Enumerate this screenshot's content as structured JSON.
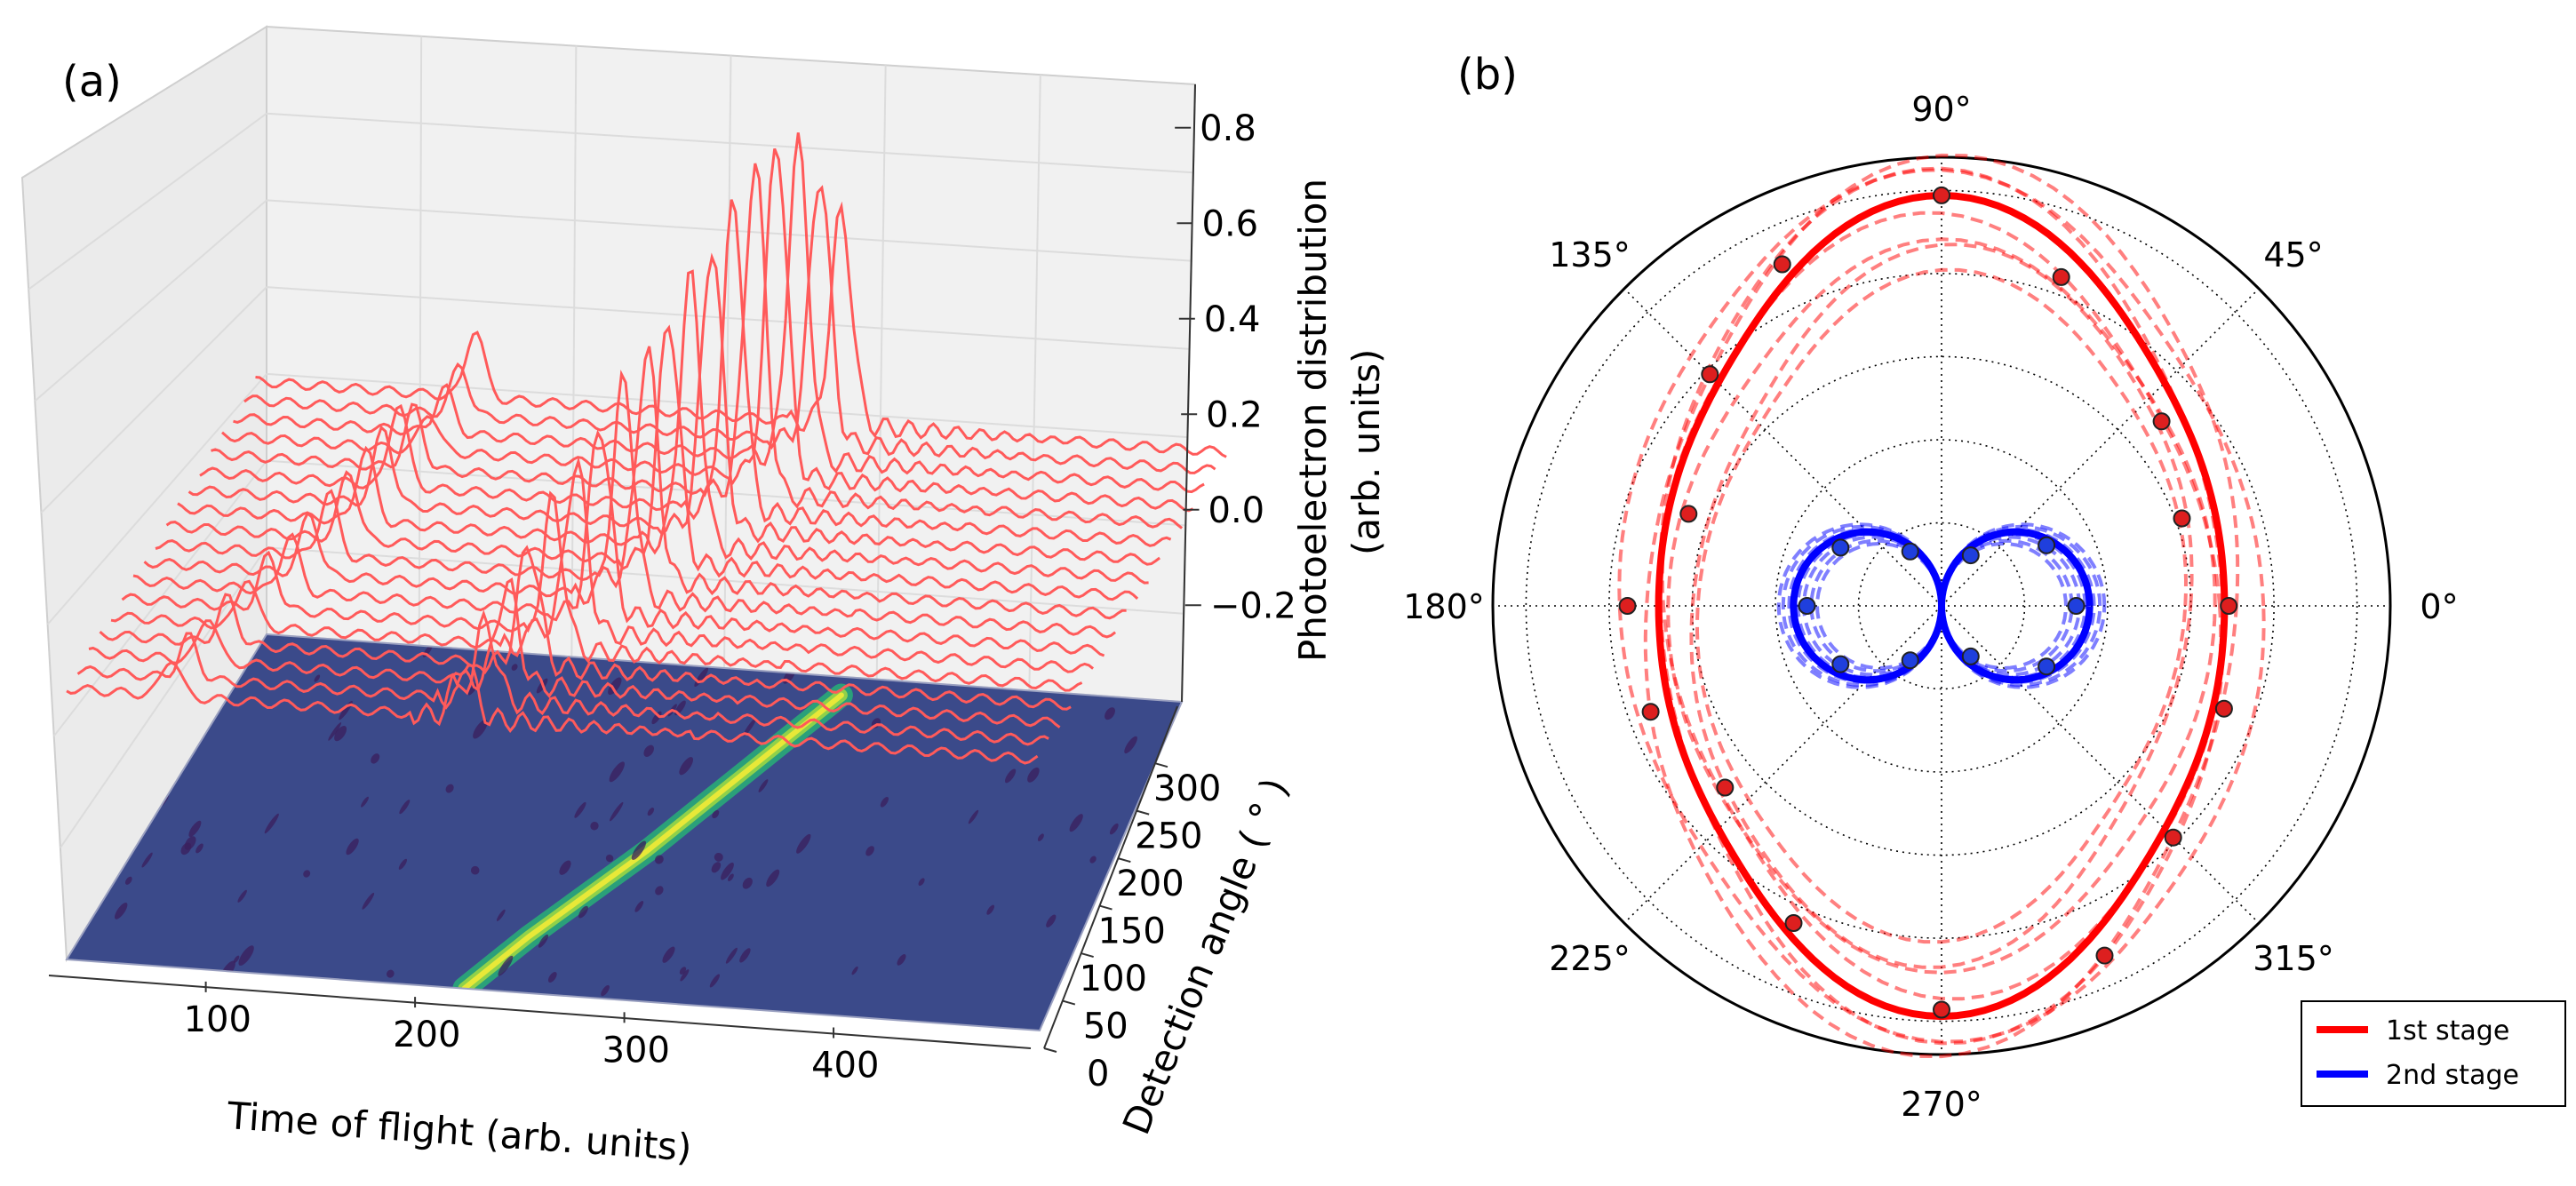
{
  "chart_data": [
    {
      "panel_label": "(a)",
      "type": "line",
      "projection": "3d-waterfall-with-floor-contour",
      "xlabel": "Time of flight (arb. units)",
      "ylabel": "Detection angle ( ° )",
      "zlabel_lines": [
        "Photoelectron distribution",
        "(arb. units)"
      ],
      "x_ticks": [
        "100",
        "200",
        "300",
        "400"
      ],
      "y_ticks": [
        "0",
        "50",
        "100",
        "150",
        "200",
        "250",
        "300"
      ],
      "z_ticks": [
        "−0.2",
        "0.0",
        "0.2",
        "0.4",
        "0.6",
        "0.8"
      ],
      "xlim": [
        25,
        490
      ],
      "ylim": [
        0,
        360
      ],
      "zlim": [
        -0.3,
        0.9
      ],
      "trace_color": "#ff5a5a",
      "floor_color": "#3b4a8a",
      "contour_highlight": "#e8e838",
      "angles": [
        0,
        20,
        40,
        60,
        80,
        100,
        120,
        140,
        160,
        180,
        200,
        220,
        240,
        260,
        280,
        300,
        320,
        340
      ],
      "peak1_tof": [
        75,
        78,
        82,
        86,
        90,
        95,
        100,
        104,
        108,
        112,
        115,
        118,
        120,
        122,
        124,
        126,
        128,
        130
      ],
      "peak1_amp": [
        0.1,
        0.11,
        0.12,
        0.12,
        0.13,
        0.14,
        0.15,
        0.16,
        0.17,
        0.18,
        0.19,
        0.2,
        0.22,
        0.16,
        0.1,
        0.12,
        0.13,
        0.18
      ],
      "peak2_tof": [
        215,
        220,
        225,
        230,
        236,
        242,
        248,
        254,
        260,
        265,
        270,
        275,
        280,
        285,
        290,
        295,
        300,
        305
      ],
      "peak2_amp": [
        0.15,
        0.2,
        0.26,
        0.32,
        0.38,
        0.44,
        0.5,
        0.56,
        0.6,
        0.64,
        0.7,
        0.74,
        0.8,
        0.86,
        0.88,
        0.82,
        0.7,
        0.55
      ]
    },
    {
      "panel_label": "(b)",
      "type": "polar",
      "angle_ticks": [
        "0°",
        "45°",
        "90°",
        "135°",
        "180°",
        "225°",
        "270°",
        "315°"
      ],
      "angle_tick_degrees": [
        0,
        45,
        90,
        135,
        180,
        225,
        270,
        315
      ],
      "grid": true,
      "legend_position": "bottom-right",
      "rlim": [
        0,
        1
      ],
      "series": [
        {
          "name": "1st stage",
          "color": "#ff0000",
          "fit": {
            "a": 0.65,
            "b": 0.17,
            "c": 0.18,
            "scale": 0.915
          },
          "points_deg": [
            0,
            20,
            40,
            70,
            90,
            115,
            135,
            160,
            180,
            200,
            220,
            245,
            270,
            295,
            315,
            340
          ],
          "points_r": [
            0.64,
            0.57,
            0.64,
            0.78,
            0.915,
            0.84,
            0.73,
            0.6,
            0.7,
            0.69,
            0.63,
            0.78,
            0.9,
            0.86,
            0.73,
            0.67
          ]
        },
        {
          "name": "2nd stage",
          "color": "#0000ff",
          "fit": {
            "a": 0.33,
            "b": 0.0,
            "c": 0.0,
            "scale": 0.33
          },
          "points_deg": [
            0,
            30,
            60,
            120,
            150,
            180,
            210,
            240,
            300,
            330
          ],
          "points_r": [
            0.3,
            0.27,
            0.13,
            0.14,
            0.26,
            0.3,
            0.26,
            0.14,
            0.13,
            0.27
          ]
        }
      ]
    }
  ]
}
